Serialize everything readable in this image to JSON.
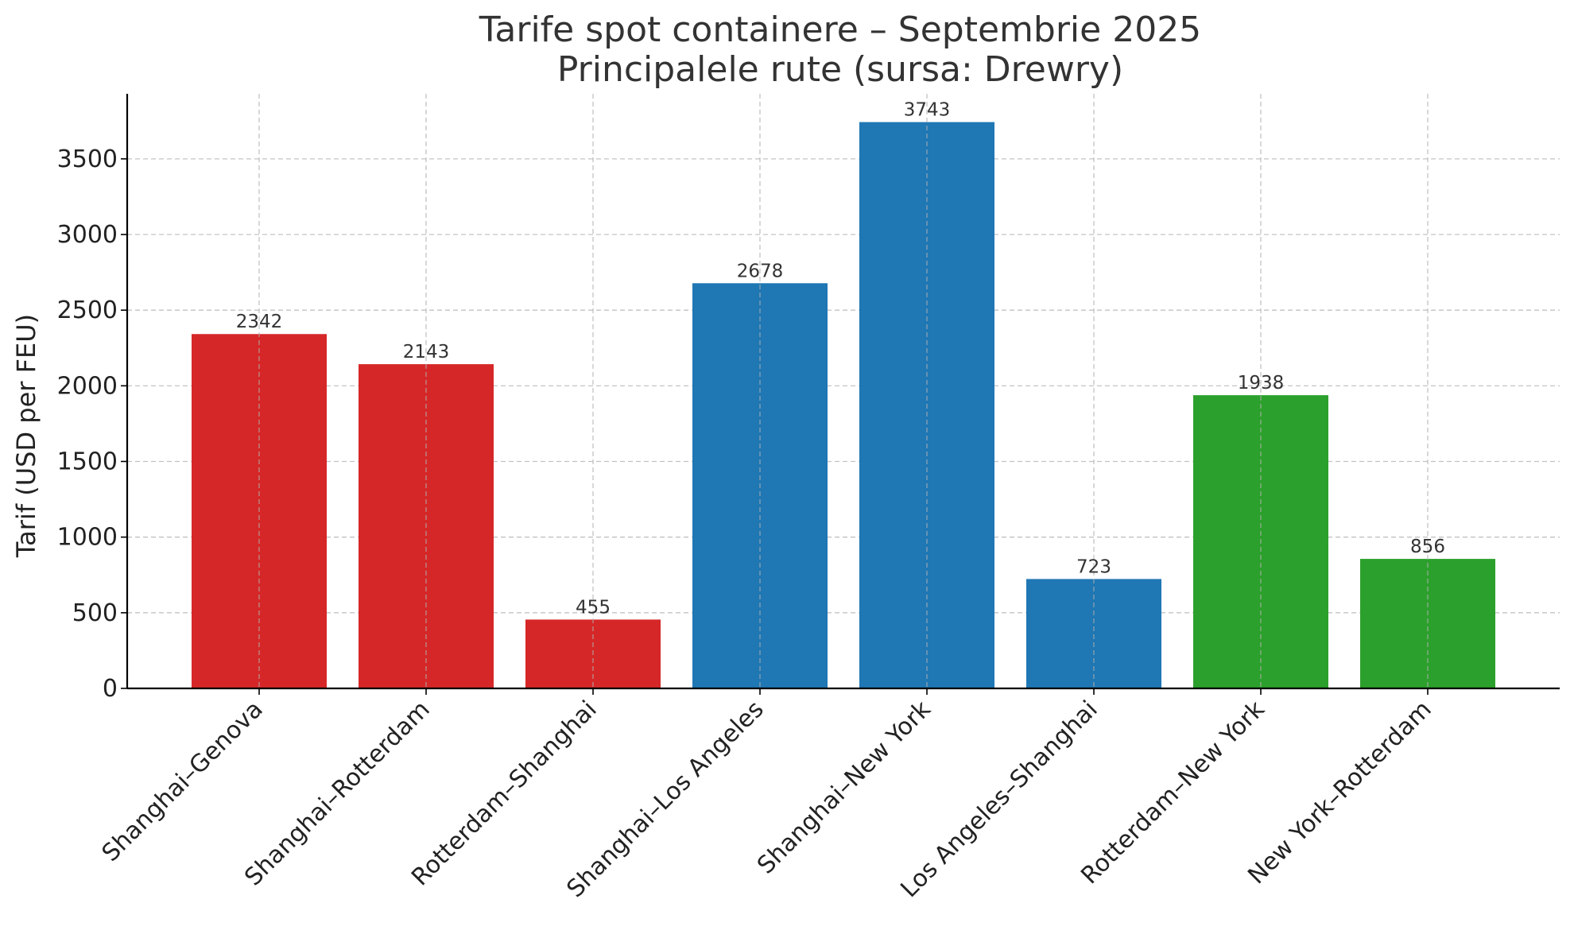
{
  "chart_data": {
    "type": "bar",
    "title": [
      "Tarife spot containere – Septembrie 2025",
      "Principalele rute (sursa: Drewry)"
    ],
    "xlabel": "",
    "ylabel": "Tarif (USD per FEU)",
    "categories": [
      "Shanghai–Genova",
      "Shanghai–Rotterdam",
      "Rotterdam–Shanghai",
      "Shanghai–Los Angeles",
      "Shanghai–New York",
      "Los Angeles–Shanghai",
      "Rotterdam–New York",
      "New York–Rotterdam"
    ],
    "values": [
      2342,
      2143,
      455,
      2678,
      3743,
      723,
      1938,
      856
    ],
    "data_labels": [
      "2342",
      "2143",
      "455",
      "2678",
      "3743",
      "723",
      "1938",
      "856"
    ],
    "bar_colors": [
      "#d62728",
      "#d62728",
      "#d62728",
      "#1f77b4",
      "#1f77b4",
      "#1f77b4",
      "#2ca02c",
      "#2ca02c"
    ],
    "yticks": [
      0,
      500,
      1000,
      1500,
      2000,
      2500,
      3000,
      3500
    ],
    "ytick_labels": [
      "0",
      "500",
      "1000",
      "1500",
      "2000",
      "2500",
      "3000",
      "3500"
    ],
    "ylim": [
      0,
      3930
    ],
    "grid": true,
    "legend": "none"
  }
}
